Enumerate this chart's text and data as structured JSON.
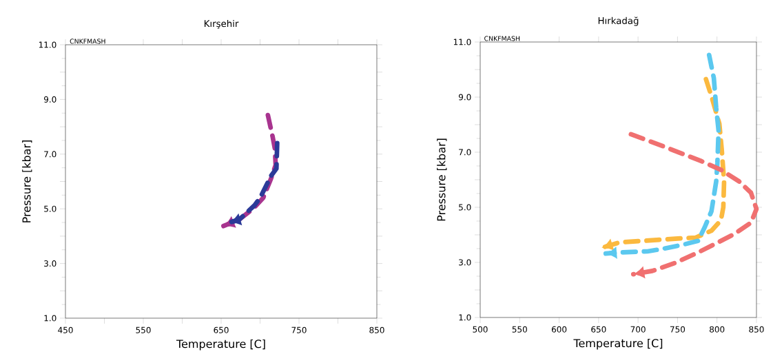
{
  "chart_data": [
    {
      "type": "line",
      "title": "Kırşehir",
      "xlabel": "Temperature [C]",
      "ylabel": "Pressure [kbar]",
      "annotations": [
        "CNKFMASH"
      ],
      "xlim": [
        450,
        850
      ],
      "ylim": [
        1,
        11
      ],
      "xticks": [
        450,
        {
          "value": 500,
          "label": null
        },
        550,
        {
          "value": 600,
          "label": null
        },
        650,
        {
          "value": 700,
          "label": null
        },
        750,
        {
          "value": 800,
          "label": null
        },
        850
      ],
      "yticks": [
        {
          "value": 1,
          "label": "1.0"
        },
        {
          "value": 2,
          "label": null
        },
        {
          "value": 3,
          "label": "3.0"
        },
        {
          "value": 4,
          "label": null
        },
        {
          "value": 5,
          "label": "5.0"
        },
        {
          "value": 6,
          "label": null
        },
        {
          "value": 7,
          "label": "7.0"
        },
        {
          "value": 8,
          "label": null
        },
        {
          "value": 9,
          "label": "9.0"
        },
        {
          "value": 10,
          "label": null
        },
        {
          "value": 11,
          "label": "11.0"
        }
      ],
      "grid": false,
      "marker": "none",
      "line_style": "dashed",
      "series": [
        {
          "color": "#a8348f",
          "x": [
            710,
            716,
            719,
            720,
            714,
            704,
            691,
            673,
            653
          ],
          "values": [
            8.43,
            7.65,
            7.2,
            6.6,
            6.1,
            5.4,
            5.0,
            4.6,
            4.37
          ]
        },
        {
          "color": "#2b3a98",
          "x": [
            722,
            721,
            714,
            700,
            693,
            673,
            661
          ],
          "values": [
            7.4,
            6.47,
            6.2,
            5.4,
            5.13,
            4.6,
            4.5
          ]
        }
      ]
    },
    {
      "type": "line",
      "title": "Hırkadağ",
      "xlabel": "Temperature [C]",
      "ylabel": "Pressure [kbar]",
      "annotations": [
        "CNKFMASH"
      ],
      "xlim": [
        500,
        850
      ],
      "ylim": [
        1,
        11
      ],
      "xticks": [
        500,
        550,
        600,
        650,
        700,
        750,
        800,
        850
      ],
      "yticks": [
        {
          "value": 1,
          "label": "1.0"
        },
        {
          "value": 2,
          "label": null
        },
        {
          "value": 3,
          "label": "3.0"
        },
        {
          "value": 4,
          "label": null
        },
        {
          "value": 5,
          "label": "5.0"
        },
        {
          "value": 6,
          "label": null
        },
        {
          "value": 7,
          "label": "7.0"
        },
        {
          "value": 8,
          "label": null
        },
        {
          "value": 9,
          "label": "9.0"
        },
        {
          "value": 10,
          "label": null
        },
        {
          "value": 11,
          "label": "11.0"
        }
      ],
      "grid": false,
      "marker": "none",
      "line_style": "dashed",
      "series": [
        {
          "color": "#fbb93f",
          "x": [
            786,
            793,
            803,
            806,
            809,
            808,
            805,
            793,
            773,
            747,
            706,
            677,
            654
          ],
          "values": [
            9.65,
            9.03,
            8.03,
            7.1,
            5.94,
            5.0,
            4.53,
            4.15,
            3.9,
            3.86,
            3.78,
            3.73,
            3.53
          ]
        },
        {
          "color": "#5bc8ef",
          "x": [
            790,
            796,
            799,
            802,
            800.5,
            799,
            793,
            784.5,
            776,
            758,
            729,
            712,
            677,
            659
          ],
          "values": [
            10.53,
            9.69,
            8.6,
            7.78,
            6.6,
            5.94,
            4.86,
            4.28,
            3.78,
            3.65,
            3.48,
            3.4,
            3.36,
            3.32
          ]
        },
        {
          "color": "#f07070",
          "x": [
            691,
            726,
            779,
            805,
            828,
            843,
            850,
            843,
            822,
            805,
            776,
            747,
            718,
            694
          ],
          "values": [
            7.65,
            7.28,
            6.69,
            6.36,
            5.94,
            5.53,
            4.94,
            4.44,
            4.03,
            3.78,
            3.36,
            2.98,
            2.69,
            2.57
          ]
        }
      ]
    }
  ]
}
